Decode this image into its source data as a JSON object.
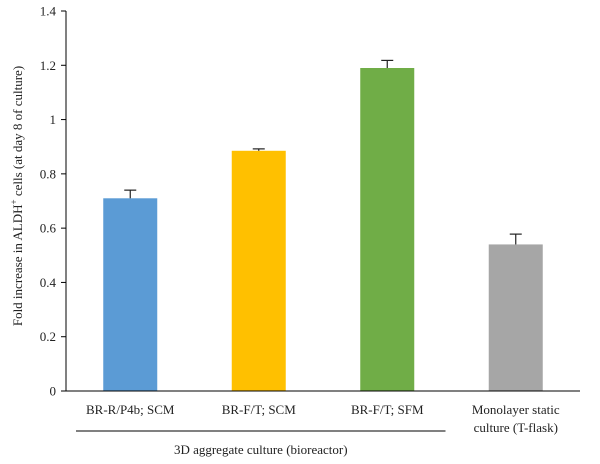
{
  "chart_data": {
    "type": "bar",
    "ylabel_main": "Fold increase in ALDH",
    "ylabel_sup": "+",
    "ylabel_rest": " cells (at day 8 of culture)",
    "xlabel": "",
    "ylim": [
      0,
      1.4
    ],
    "yticks": [
      0,
      0.2,
      0.4,
      0.6,
      0.8,
      1,
      1.2,
      1.4
    ],
    "grid": false,
    "categories": [
      [
        "BR-R/P4b; SCM"
      ],
      [
        "BR-F/T; SCM"
      ],
      [
        "BR-F/T; SFM"
      ],
      [
        "Monolayer static",
        "culture (T-flask)"
      ]
    ],
    "values": [
      0.71,
      0.885,
      1.19,
      0.54
    ],
    "errors": [
      0.03,
      0.007,
      0.028,
      0.038
    ],
    "colors": [
      "#5b9bd5",
      "#ffc000",
      "#70ad47",
      "#a6a6a6"
    ],
    "group": {
      "label": "3D aggregate culture (bioreactor)",
      "category_span": [
        0,
        2
      ]
    }
  }
}
